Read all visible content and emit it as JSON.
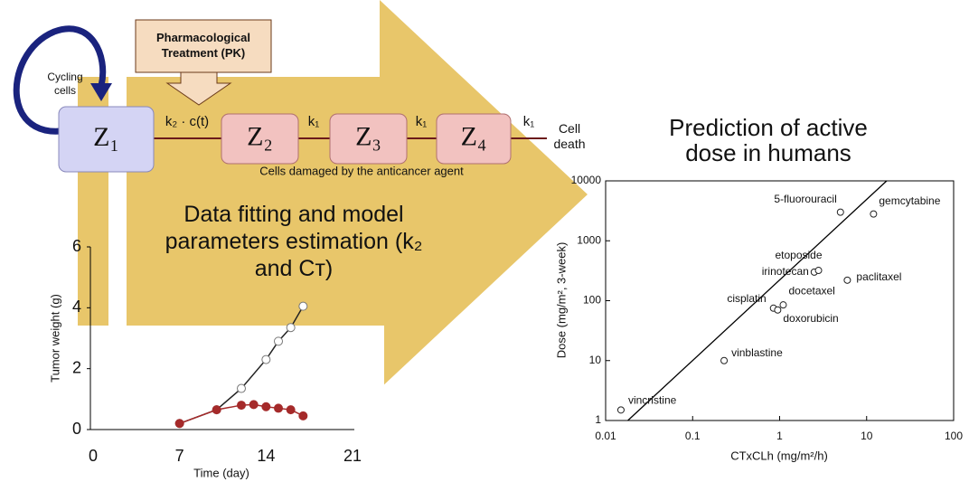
{
  "diagram": {
    "treatment": "Pharmacological Treatment (PK)",
    "cycling": "Cycling cells",
    "compartments": [
      "Z₁",
      "Z₂",
      "Z₃",
      "Z₄"
    ],
    "rates": [
      "k₂ · c(t)",
      "k₁",
      "k₁",
      "k₁"
    ],
    "outcome": "Cell death",
    "damaged": "Cells damaged by the anticancer agent",
    "fitting": "Data fitting and model parameters estimation (k₂ and Cᴛ)"
  },
  "chart_data": [
    {
      "type": "line",
      "xlabel": "Time (day)",
      "ylabel": "Tumor weight (g)",
      "xlim": [
        0,
        21
      ],
      "xticks": [
        0,
        7,
        14,
        21
      ],
      "ylim": [
        0,
        6
      ],
      "yticks": [
        0,
        2,
        4,
        6
      ],
      "series": [
        {
          "color": "#222222",
          "marker": "open",
          "x": [
            7,
            10,
            12,
            14,
            15,
            16,
            17
          ],
          "values": [
            0.2,
            0.65,
            1.35,
            2.3,
            2.9,
            3.35,
            4.05
          ]
        },
        {
          "color": "#a52a2a",
          "marker": "filled",
          "x": [
            7,
            10,
            12,
            13,
            14,
            15,
            16,
            17
          ],
          "values": [
            0.2,
            0.65,
            0.8,
            0.82,
            0.75,
            0.7,
            0.65,
            0.45
          ]
        }
      ]
    },
    {
      "type": "scatter",
      "title": "Prediction of active dose in humans",
      "xlabel": "CTxCLh (mg/m²/h)",
      "ylabel": "Dose (mg/m², 3-week)",
      "log_x": true,
      "log_y": true,
      "xlim": [
        0.01,
        100
      ],
      "xticks": [
        0.01,
        0.1,
        1,
        10,
        100
      ],
      "ylim": [
        1,
        10000
      ],
      "yticks": [
        1,
        10,
        100,
        1000,
        10000
      ],
      "series": [
        {
          "color": "#222222",
          "labels": [
            "vincristine",
            "vinblastine",
            "cisplatin",
            "doxorubicin",
            "docetaxel",
            "irinotecan",
            "etoposide",
            "paclitaxel",
            "5-fluorouracil",
            "gemcytabine"
          ],
          "x": [
            0.015,
            0.23,
            0.85,
            0.95,
            1.1,
            2.5,
            2.8,
            6,
            5,
            12
          ],
          "values": [
            1.5,
            10,
            75,
            70,
            85,
            300,
            320,
            220,
            3000,
            2800
          ]
        }
      ],
      "fit": {
        "x": [
          0.018,
          17
        ],
        "values": [
          1,
          10000
        ]
      }
    }
  ]
}
